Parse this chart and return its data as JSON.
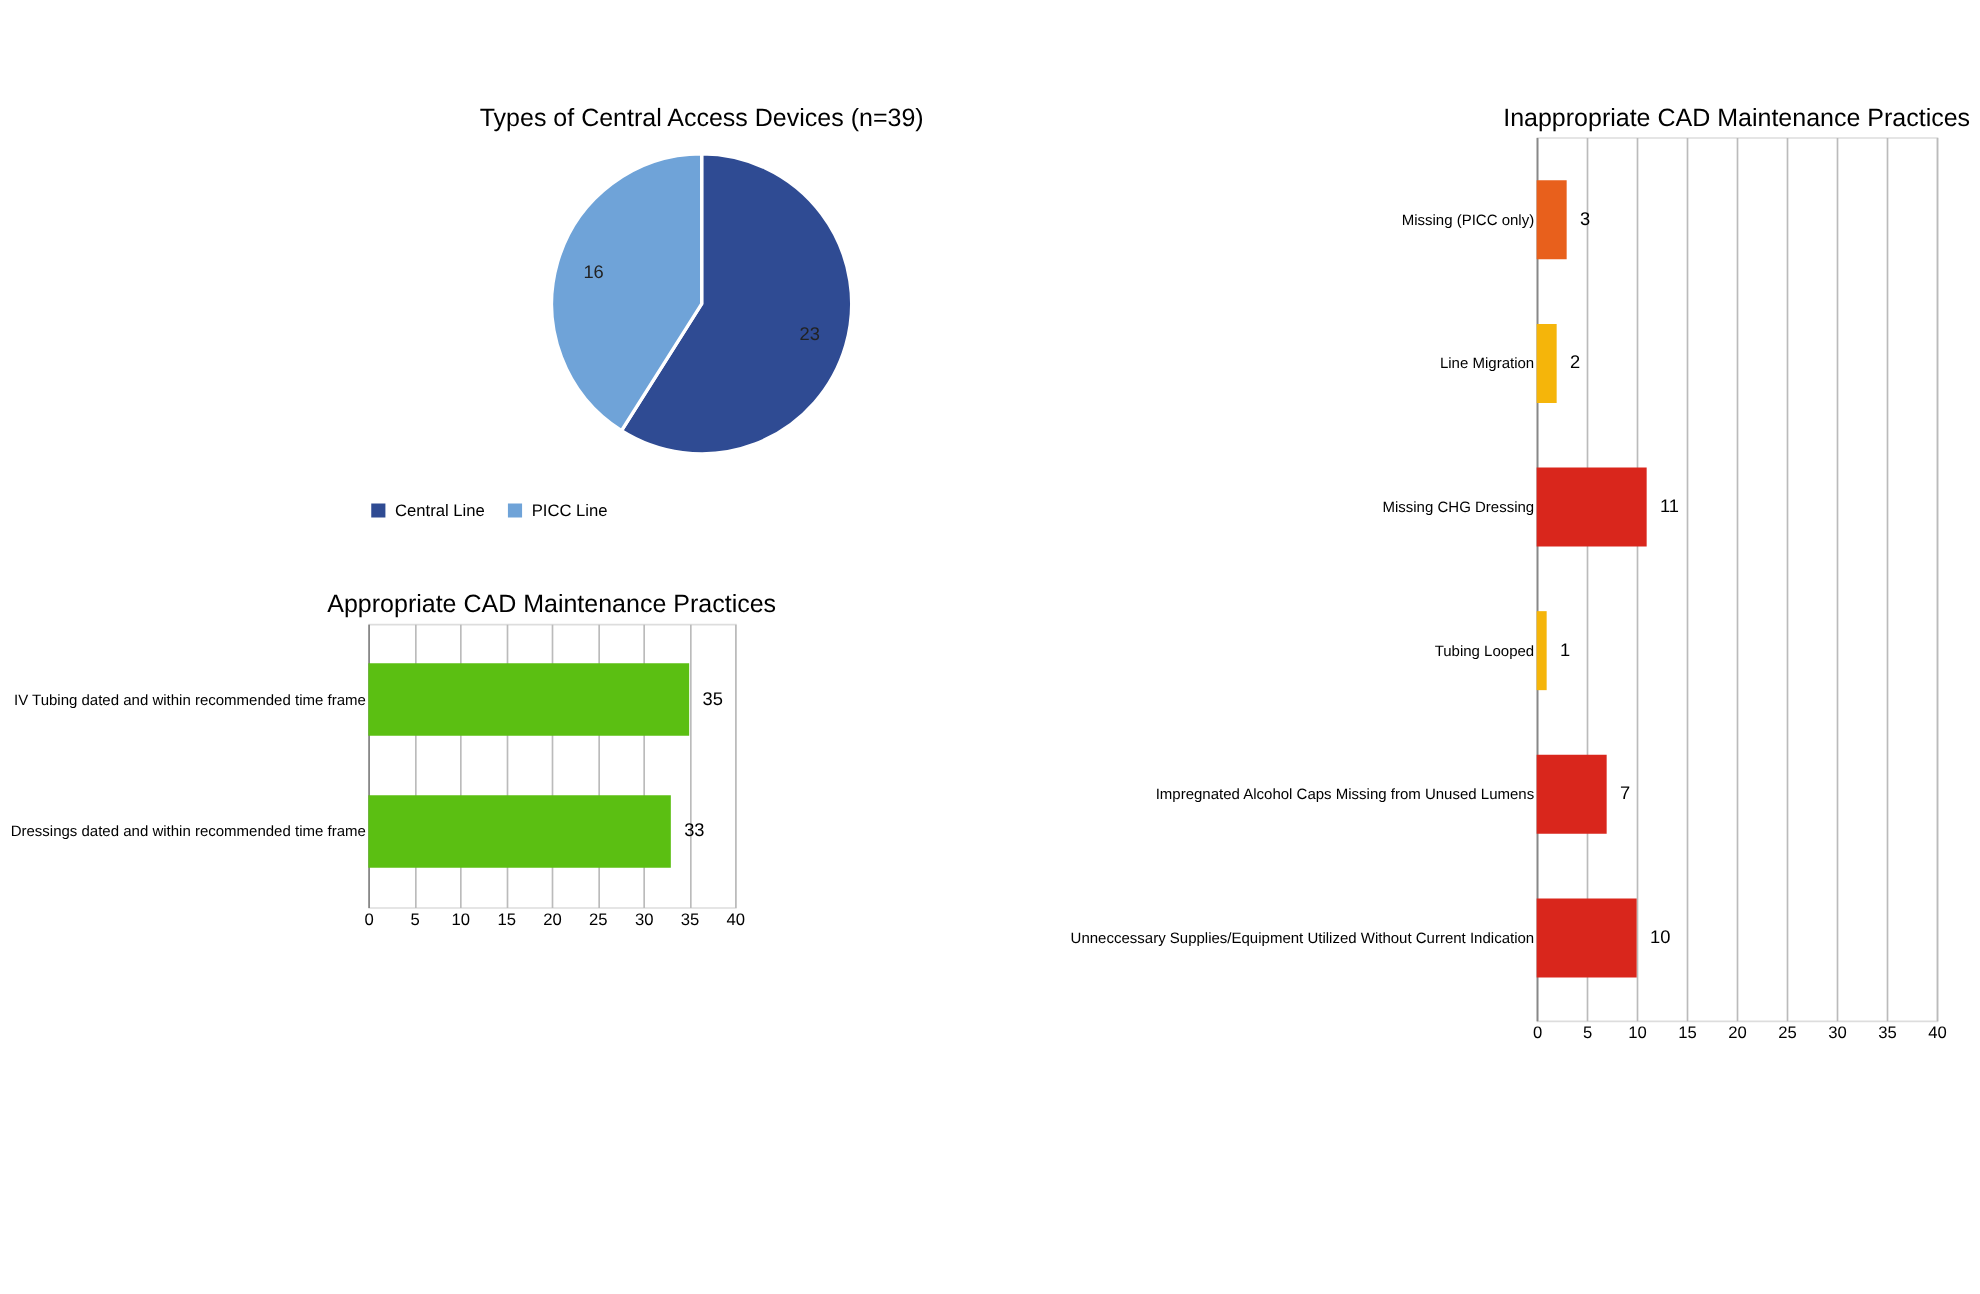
{
  "chart_data": [
    {
      "type": "pie",
      "title": "Types of Central Access Devices (n=39)",
      "categories": [
        "Central Line",
        "PICC Line"
      ],
      "values": [
        23,
        16
      ],
      "colors": [
        "#2f4b93",
        "#6fa3d8"
      ],
      "data_labels": true,
      "legend": "bottom"
    },
    {
      "type": "bar",
      "orientation": "horizontal",
      "title": "Appropriate CAD Maintenance Practices",
      "categories": [
        "IV Tubing dated and within recommended time frame",
        "Dressings dated and within recommended time frame"
      ],
      "values": [
        35,
        33
      ],
      "colors": [
        "#5bbf12",
        "#5bbf12"
      ],
      "xlim": [
        0,
        40
      ],
      "xticks": [
        0,
        5,
        10,
        15,
        20,
        25,
        30,
        35,
        40
      ],
      "grid": "x",
      "data_labels": true
    },
    {
      "type": "bar",
      "orientation": "horizontal",
      "title": "Inappropriate CAD Maintenance Practices",
      "categories": [
        "Missing (PICC only)",
        "Line Migration",
        "Missing CHG Dressing",
        "Tubing Looped",
        "Impregnated Alcohol Caps Missing from Unused Lumens",
        "Unneccessary Supplies/Equipment Utilized Without Current Indication"
      ],
      "values": [
        3,
        2,
        11,
        1,
        7,
        10
      ],
      "colors": [
        "#e8601c",
        "#f5b50a",
        "#d9261c",
        "#f5b50a",
        "#d9261c",
        "#d9261c"
      ],
      "xlim": [
        0,
        40
      ],
      "xticks": [
        0,
        5,
        10,
        15,
        20,
        25,
        30,
        35,
        40
      ],
      "grid": "x",
      "data_labels": true
    }
  ]
}
